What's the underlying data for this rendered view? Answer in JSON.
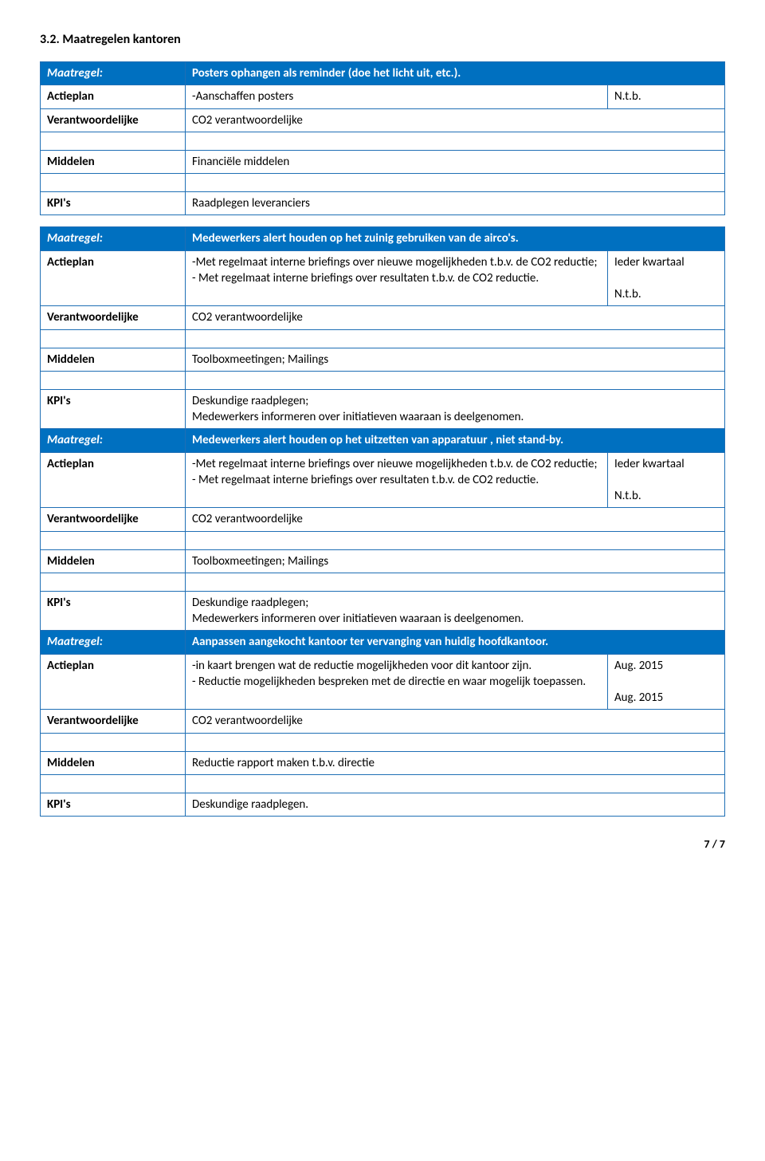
{
  "section_title": "3.2. Maatregelen kantoren",
  "labels": {
    "maatregel": "Maatregel:",
    "actieplan": "Actieplan",
    "verantwoordelijke": "Verantwoordelijke",
    "middelen": "Middelen",
    "kpis": "KPI's"
  },
  "t1": {
    "header": "Posters ophangen als reminder (doe het licht uit, etc.).",
    "actieplan": "-Aanschaffen posters",
    "actieplan_r": "N.t.b.",
    "verantw": "CO2 verantwoordelijke",
    "middelen": "Financiële middelen",
    "kpis": "Raadplegen leveranciers"
  },
  "t2": {
    "header": "Medewerkers alert houden op het zuinig gebruiken van de airco's.",
    "actieplan": "-Met regelmaat interne briefings over nieuwe mogelijkheden t.b.v. de CO2 reductie;\n- Met regelmaat interne briefings over resultaten t.b.v. de CO2 reductie.",
    "actieplan_r": "Ieder kwartaal\n\nN.t.b.",
    "verantw": "CO2 verantwoordelijke",
    "middelen": "Toolboxmeetingen; Mailings",
    "kpis": "Deskundige raadplegen;\nMedewerkers informeren over  initiatieven waaraan is deelgenomen."
  },
  "t3": {
    "header": "Medewerkers alert houden op het uitzetten van apparatuur , niet stand-by.",
    "actieplan": "-Met regelmaat interne briefings over nieuwe mogelijkheden t.b.v. de CO2 reductie;\n- Met regelmaat interne briefings over resultaten t.b.v. de CO2 reductie.",
    "actieplan_r": "Ieder kwartaal\n\nN.t.b.",
    "verantw": "CO2 verantwoordelijke",
    "middelen": "Toolboxmeetingen; Mailings",
    "kpis": "Deskundige raadplegen;\nMedewerkers informeren over  initiatieven waaraan is deelgenomen."
  },
  "t4": {
    "header": "Aanpassen aangekocht kantoor ter vervanging van huidig hoofdkantoor.",
    "actieplan": "-in kaart brengen wat de reductie mogelijkheden voor dit kantoor zijn.\n- Reductie mogelijkheden bespreken met de directie en waar mogelijk toepassen.",
    "actieplan_r": "Aug. 2015\n\nAug. 2015",
    "verantw": "CO2 verantwoordelijke",
    "middelen": "Reductie rapport maken t.b.v. directie",
    "kpis": "Deskundige raadplegen."
  },
  "footer": "7 / 7"
}
